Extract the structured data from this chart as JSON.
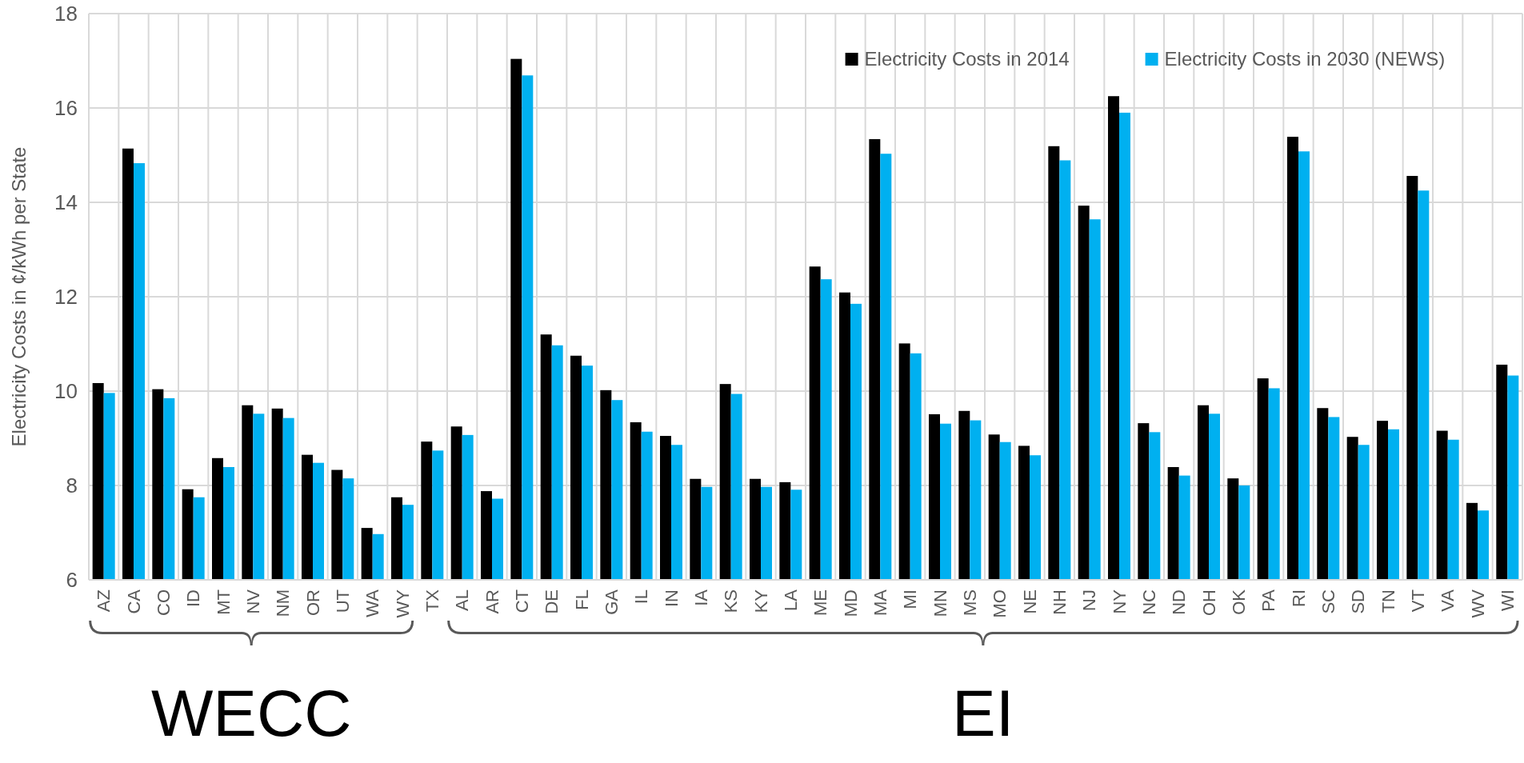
{
  "chart_data": {
    "type": "bar",
    "ylabel": "Electricity Costs in ¢/kWh per State",
    "categories": [
      "AZ",
      "CA",
      "CO",
      "ID",
      "MT",
      "NV",
      "NM",
      "OR",
      "UT",
      "WA",
      "WY",
      "TX",
      "AL",
      "AR",
      "CT",
      "DE",
      "FL",
      "GA",
      "IL",
      "IN",
      "IA",
      "KS",
      "KY",
      "LA",
      "ME",
      "MD",
      "MA",
      "MI",
      "MN",
      "MS",
      "MO",
      "NE",
      "NH",
      "NJ",
      "NY",
      "NC",
      "ND",
      "OH",
      "OK",
      "PA",
      "RI",
      "SC",
      "SD",
      "TN",
      "VT",
      "VA",
      "WV",
      "WI"
    ],
    "series": [
      {
        "name": "Electricity Costs in 2014",
        "color": "#000000",
        "values": [
          10.17,
          15.14,
          10.04,
          7.92,
          8.58,
          9.7,
          9.63,
          8.65,
          8.33,
          7.1,
          7.75,
          8.93,
          9.25,
          7.88,
          17.04,
          11.2,
          10.75,
          10.02,
          9.34,
          9.05,
          8.14,
          10.15,
          8.14,
          8.07,
          12.64,
          12.09,
          15.34,
          11.01,
          9.51,
          9.58,
          9.08,
          8.84,
          15.19,
          13.93,
          16.25,
          9.32,
          8.39,
          9.7,
          8.15,
          10.27,
          15.39,
          9.64,
          9.03,
          9.37,
          14.56,
          9.16,
          7.63,
          10.56
        ]
      },
      {
        "name": "Electricity Costs in 2030 (NEWS)",
        "color": "#00b0f0",
        "values": [
          9.96,
          14.83,
          9.85,
          7.75,
          8.39,
          9.52,
          9.43,
          8.48,
          8.15,
          6.97,
          7.59,
          8.74,
          9.07,
          7.72,
          16.69,
          10.97,
          10.54,
          9.81,
          9.14,
          8.86,
          7.97,
          9.94,
          7.97,
          7.91,
          12.37,
          11.85,
          15.03,
          10.8,
          9.31,
          9.38,
          8.92,
          8.64,
          14.89,
          13.64,
          15.9,
          9.13,
          8.21,
          9.52,
          8,
          10.06,
          15.08,
          9.45,
          8.86,
          9.19,
          14.25,
          8.97,
          7.47,
          10.33
        ]
      }
    ],
    "ylim": [
      6,
      18
    ],
    "yticks": [
      6,
      8,
      10,
      12,
      14,
      16,
      18
    ],
    "grid": true,
    "legend": "top right",
    "annotations": [
      "WECC",
      "EI"
    ]
  }
}
